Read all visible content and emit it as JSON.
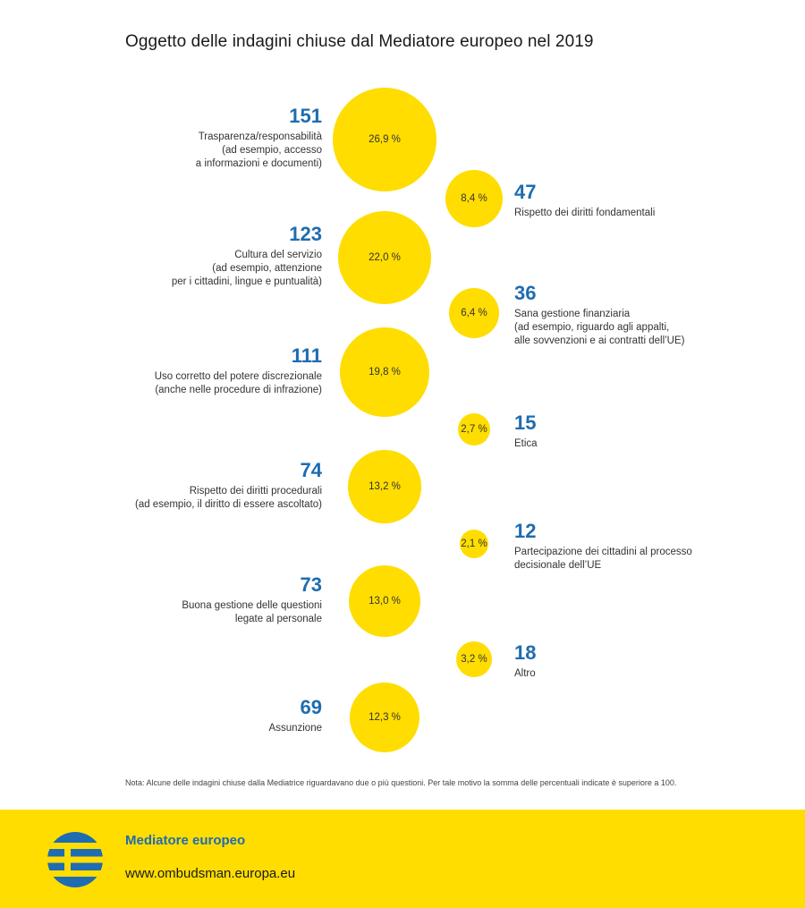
{
  "title": "Oggetto delle indagini chiuse dal Mediatore europeo nel 2019",
  "colors": {
    "bubble": "#FFDD00",
    "accent": "#1F6CB0",
    "footer_bg": "#FFDD00",
    "logo_blue": "#1F6CB0"
  },
  "chart_data": {
    "type": "bubble",
    "title": "Oggetto delle indagini chiuse dal Mediatore europeo nel 2019",
    "items": [
      {
        "count": "151",
        "percent": "26,9 %",
        "value": 26.9,
        "label": "Trasparenza/responsabilità\n(ad esempio, accesso\na informazioni e documenti)"
      },
      {
        "count": "47",
        "percent": "8,4 %",
        "value": 8.4,
        "label": "Rispetto dei diritti fondamentali"
      },
      {
        "count": "123",
        "percent": "22,0 %",
        "value": 22.0,
        "label": "Cultura del servizio\n(ad esempio, attenzione\nper i cittadini, lingue e puntualità)"
      },
      {
        "count": "36",
        "percent": "6,4 %",
        "value": 6.4,
        "label": "Sana gestione finanziaria\n(ad esempio, riguardo agli appalti,\nalle sovvenzioni e ai contratti dell’UE)"
      },
      {
        "count": "111",
        "percent": "19,8 %",
        "value": 19.8,
        "label": "Uso corretto del potere discrezionale\n(anche nelle procedure di infrazione)"
      },
      {
        "count": "15",
        "percent": "2,7 %",
        "value": 2.7,
        "label": "Etica"
      },
      {
        "count": "74",
        "percent": "13,2 %",
        "value": 13.2,
        "label": "Rispetto dei diritti procedurali\n(ad esempio, il diritto di essere ascoltato)"
      },
      {
        "count": "12",
        "percent": "2,1 %",
        "value": 2.1,
        "label": "Partecipazione dei cittadini al processo\ndecisionale dell’UE"
      },
      {
        "count": "73",
        "percent": "13,0 %",
        "value": 13.0,
        "label": "Buona gestione delle questioni\nlegate al personale"
      },
      {
        "count": "18",
        "percent": "3,2 %",
        "value": 3.2,
        "label": "Altro"
      },
      {
        "count": "69",
        "percent": "12,3 %",
        "value": 12.3,
        "label": "Assunzione"
      }
    ]
  },
  "note": "Nota: Alcune delle indagini chiuse dalla Mediatrice riguardavano due o più questioni. Per tale motivo la somma delle percentuali indicate è superiore a 100.",
  "footer": {
    "org_name": "Mediatore europeo",
    "website": "www.ombudsman.europa.eu",
    "logo_icon": "european-ombudsman-logo"
  }
}
